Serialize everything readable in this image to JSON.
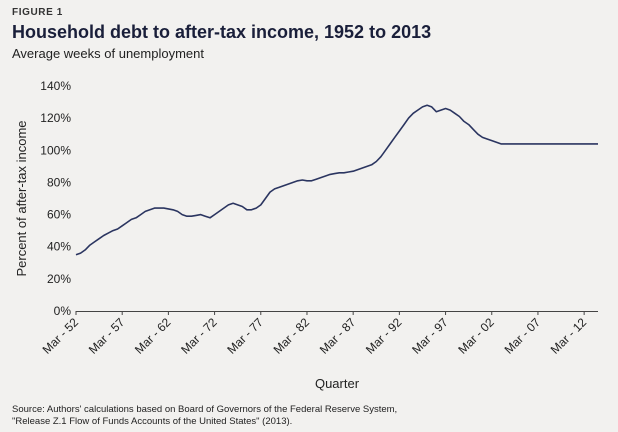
{
  "figure": {
    "label": "FIGURE 1",
    "title": "Household debt to after-tax income, 1952 to 2013",
    "subtitle": "Average weeks of unemployment"
  },
  "source_lines": [
    "Source: Authors' calculations based on Board of Governors of the Federal Reserve System,",
    "\"Release Z.1 Flow of Funds Accounts of the United States\" (2013)."
  ],
  "colors": {
    "line": "#2b3560",
    "background": "#f2f1ef",
    "axis": "#444444"
  },
  "chart_data": {
    "type": "line",
    "title": "Household debt to after-tax income, 1952 to 2013",
    "subtitle": "Average weeks of unemployment",
    "xlabel": "Quarter",
    "ylabel": "Percent of after-tax income",
    "ylim": [
      0,
      140
    ],
    "yticks": [
      "0%",
      "20%",
      "40%",
      "60%",
      "80%",
      "100%",
      "120%",
      "140%"
    ],
    "xticks": [
      "Mar - 52",
      "Mar - 57",
      "Mar - 62",
      "Mar - 72",
      "Mar - 77",
      "Mar - 82",
      "Mar - 87",
      "Mar - 92",
      "Mar - 97",
      "Mar - 02",
      "Mar - 07",
      "Mar - 12"
    ],
    "grid": false,
    "legend": "none",
    "series": [
      {
        "x": [
          0,
          0.1,
          0.2,
          0.3,
          0.4,
          0.5,
          0.6,
          0.7,
          0.8,
          0.9,
          1.0,
          1.1,
          1.2,
          1.3,
          1.4,
          1.5,
          1.6,
          1.7,
          1.8,
          1.9,
          2.0,
          2.1,
          2.2,
          2.3,
          2.4,
          2.5,
          2.6,
          2.7,
          2.8,
          2.9,
          3.0,
          3.1,
          3.2,
          3.3,
          3.4,
          3.5,
          3.6,
          3.7,
          3.8,
          3.9,
          4.0,
          4.1,
          4.2,
          4.3,
          4.4,
          4.5,
          4.6,
          4.7,
          4.8,
          4.9,
          5.0,
          5.1,
          5.2,
          5.3,
          5.4,
          5.5,
          5.6,
          5.7,
          5.8,
          5.9,
          6.0,
          6.1,
          6.2,
          6.3,
          6.4,
          6.5,
          6.6,
          6.7,
          6.8,
          6.9,
          7.0,
          7.1,
          7.2,
          7.3,
          7.4,
          7.5,
          7.6,
          7.7,
          7.8,
          7.9,
          8.0,
          8.1,
          8.2,
          8.3,
          8.4,
          8.5,
          8.6,
          8.7,
          8.8,
          8.9,
          9.0,
          9.1,
          9.2,
          9.3,
          9.4,
          9.5,
          9.6,
          9.7,
          9.8,
          9.9,
          10.0,
          10.1,
          10.2,
          10.3,
          10.4,
          10.5,
          10.6,
          10.7,
          10.8,
          10.9,
          11.0,
          11.1,
          11.2,
          11.3
        ],
        "values": [
          35,
          36,
          38,
          41,
          43,
          45,
          47,
          48.5,
          50,
          51,
          53,
          55,
          57,
          58,
          60,
          62,
          63,
          64,
          64,
          64,
          63.5,
          63,
          62,
          60,
          59,
          59,
          59.5,
          60,
          59,
          58,
          60,
          62,
          64,
          66,
          67,
          66,
          65,
          63,
          63,
          64,
          66,
          70,
          74,
          76,
          77,
          78,
          79,
          80,
          81,
          81.5,
          81,
          81,
          82,
          83,
          84,
          85,
          85.5,
          86,
          86,
          86.5,
          87,
          88,
          89,
          90,
          91,
          93,
          96,
          100,
          104,
          108,
          112,
          116,
          120,
          123,
          125,
          127,
          128,
          127,
          124,
          125,
          126,
          125,
          123,
          121,
          118,
          116,
          113,
          110,
          108,
          107,
          106,
          105,
          104,
          104,
          104,
          104,
          104,
          104,
          104,
          104,
          104,
          104,
          104,
          104,
          104,
          104,
          104,
          104,
          104,
          104,
          104,
          104,
          104,
          104
        ]
      }
    ]
  }
}
